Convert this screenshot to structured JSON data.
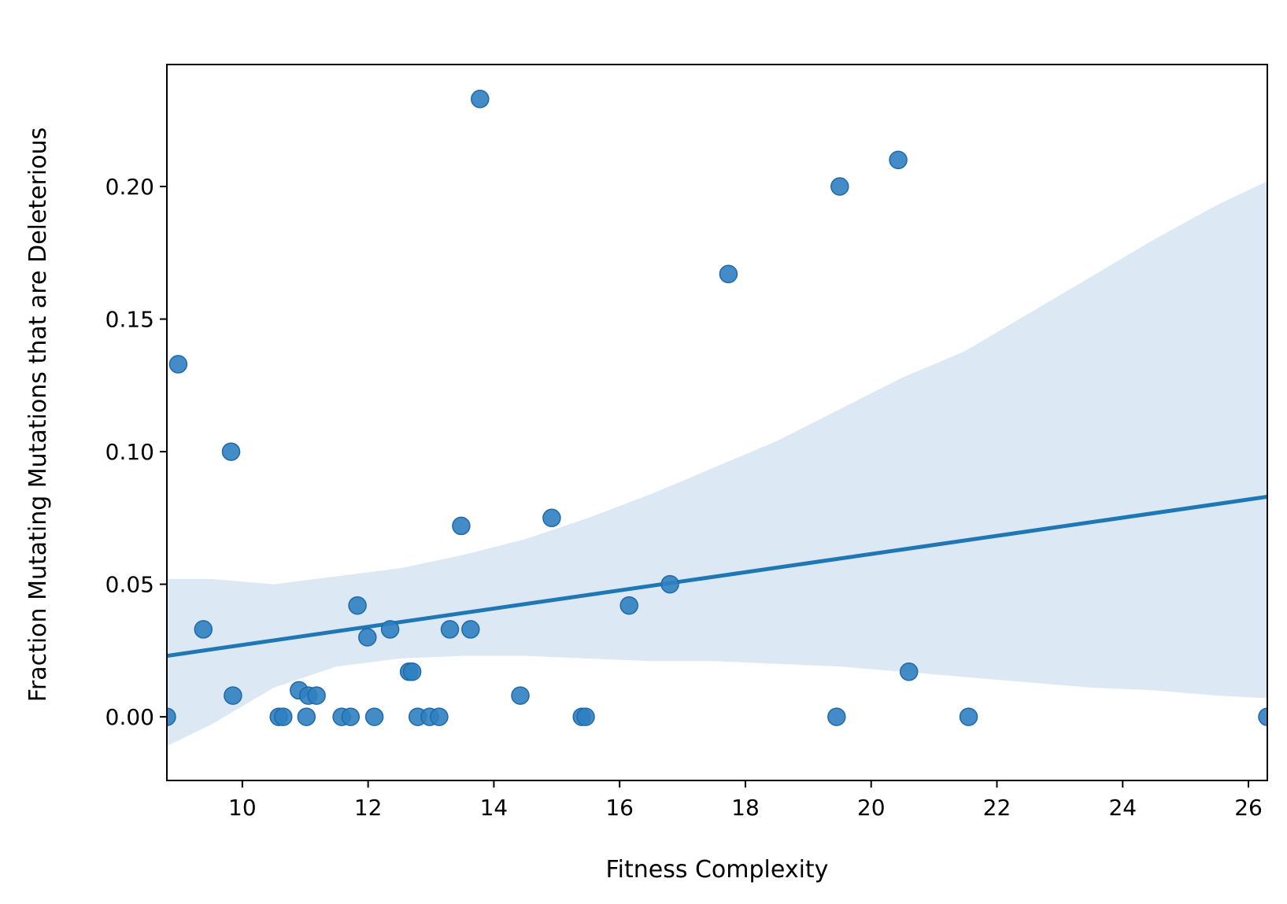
{
  "chart_data": {
    "type": "scatter",
    "title": "",
    "xlabel": "Fitness Complexity",
    "ylabel": "Fraction Mutating Mutations that are Deleterious",
    "xlim": [
      8.8,
      26.3
    ],
    "ylim": [
      -0.024,
      0.246
    ],
    "xticks": [
      10,
      12,
      14,
      16,
      18,
      20,
      22,
      24,
      26
    ],
    "yticks": [
      0.0,
      0.05,
      0.1,
      0.15,
      0.2
    ],
    "ytick_labels": [
      "0.00",
      "0.05",
      "0.10",
      "0.15",
      "0.20"
    ],
    "grid": false,
    "legend": "none",
    "points": [
      {
        "x": 8.8,
        "y": 0.0
      },
      {
        "x": 8.98,
        "y": 0.133
      },
      {
        "x": 9.38,
        "y": 0.033
      },
      {
        "x": 9.82,
        "y": 0.1
      },
      {
        "x": 9.85,
        "y": 0.008
      },
      {
        "x": 10.58,
        "y": 0.0
      },
      {
        "x": 10.65,
        "y": 0.0
      },
      {
        "x": 10.9,
        "y": 0.01
      },
      {
        "x": 11.02,
        "y": 0.0
      },
      {
        "x": 11.05,
        "y": 0.008
      },
      {
        "x": 11.18,
        "y": 0.008
      },
      {
        "x": 11.58,
        "y": 0.0
      },
      {
        "x": 11.72,
        "y": 0.0
      },
      {
        "x": 11.83,
        "y": 0.042
      },
      {
        "x": 11.99,
        "y": 0.03
      },
      {
        "x": 12.1,
        "y": 0.0
      },
      {
        "x": 12.35,
        "y": 0.033
      },
      {
        "x": 12.65,
        "y": 0.017
      },
      {
        "x": 12.7,
        "y": 0.017
      },
      {
        "x": 12.79,
        "y": 0.0
      },
      {
        "x": 12.98,
        "y": 0.0
      },
      {
        "x": 13.13,
        "y": 0.0
      },
      {
        "x": 13.3,
        "y": 0.033
      },
      {
        "x": 13.48,
        "y": 0.072
      },
      {
        "x": 13.63,
        "y": 0.033
      },
      {
        "x": 13.78,
        "y": 0.233
      },
      {
        "x": 14.42,
        "y": 0.008
      },
      {
        "x": 14.92,
        "y": 0.075
      },
      {
        "x": 15.4,
        "y": 0.0
      },
      {
        "x": 15.46,
        "y": 0.0
      },
      {
        "x": 16.15,
        "y": 0.042
      },
      {
        "x": 16.8,
        "y": 0.05
      },
      {
        "x": 17.73,
        "y": 0.167
      },
      {
        "x": 19.45,
        "y": 0.0
      },
      {
        "x": 19.5,
        "y": 0.2
      },
      {
        "x": 20.43,
        "y": 0.21
      },
      {
        "x": 20.6,
        "y": 0.017
      },
      {
        "x": 21.55,
        "y": 0.0
      },
      {
        "x": 26.3,
        "y": 0.0
      }
    ],
    "regression_line": {
      "x": [
        8.8,
        26.3
      ],
      "y": [
        0.023,
        0.083
      ]
    },
    "confidence_band": {
      "x": [
        8.8,
        9.5,
        10.5,
        11.5,
        12.5,
        13.5,
        14.5,
        15.5,
        16.5,
        17.5,
        18.5,
        19.5,
        20.5,
        21.5,
        22.5,
        23.5,
        24.5,
        25.5,
        26.3
      ],
      "upper": [
        0.052,
        0.052,
        0.05,
        0.053,
        0.056,
        0.061,
        0.067,
        0.075,
        0.084,
        0.094,
        0.104,
        0.116,
        0.128,
        0.138,
        0.152,
        0.166,
        0.18,
        0.193,
        0.202
      ],
      "lower": [
        -0.011,
        -0.003,
        0.011,
        0.019,
        0.022,
        0.023,
        0.023,
        0.022,
        0.021,
        0.021,
        0.02,
        0.019,
        0.017,
        0.015,
        0.013,
        0.011,
        0.01,
        0.008,
        0.007
      ]
    },
    "colors": {
      "points": "#2f7fc1",
      "point_edge": "#1f69a8",
      "line": "#1f77b4",
      "band": "#dce9f4"
    }
  }
}
